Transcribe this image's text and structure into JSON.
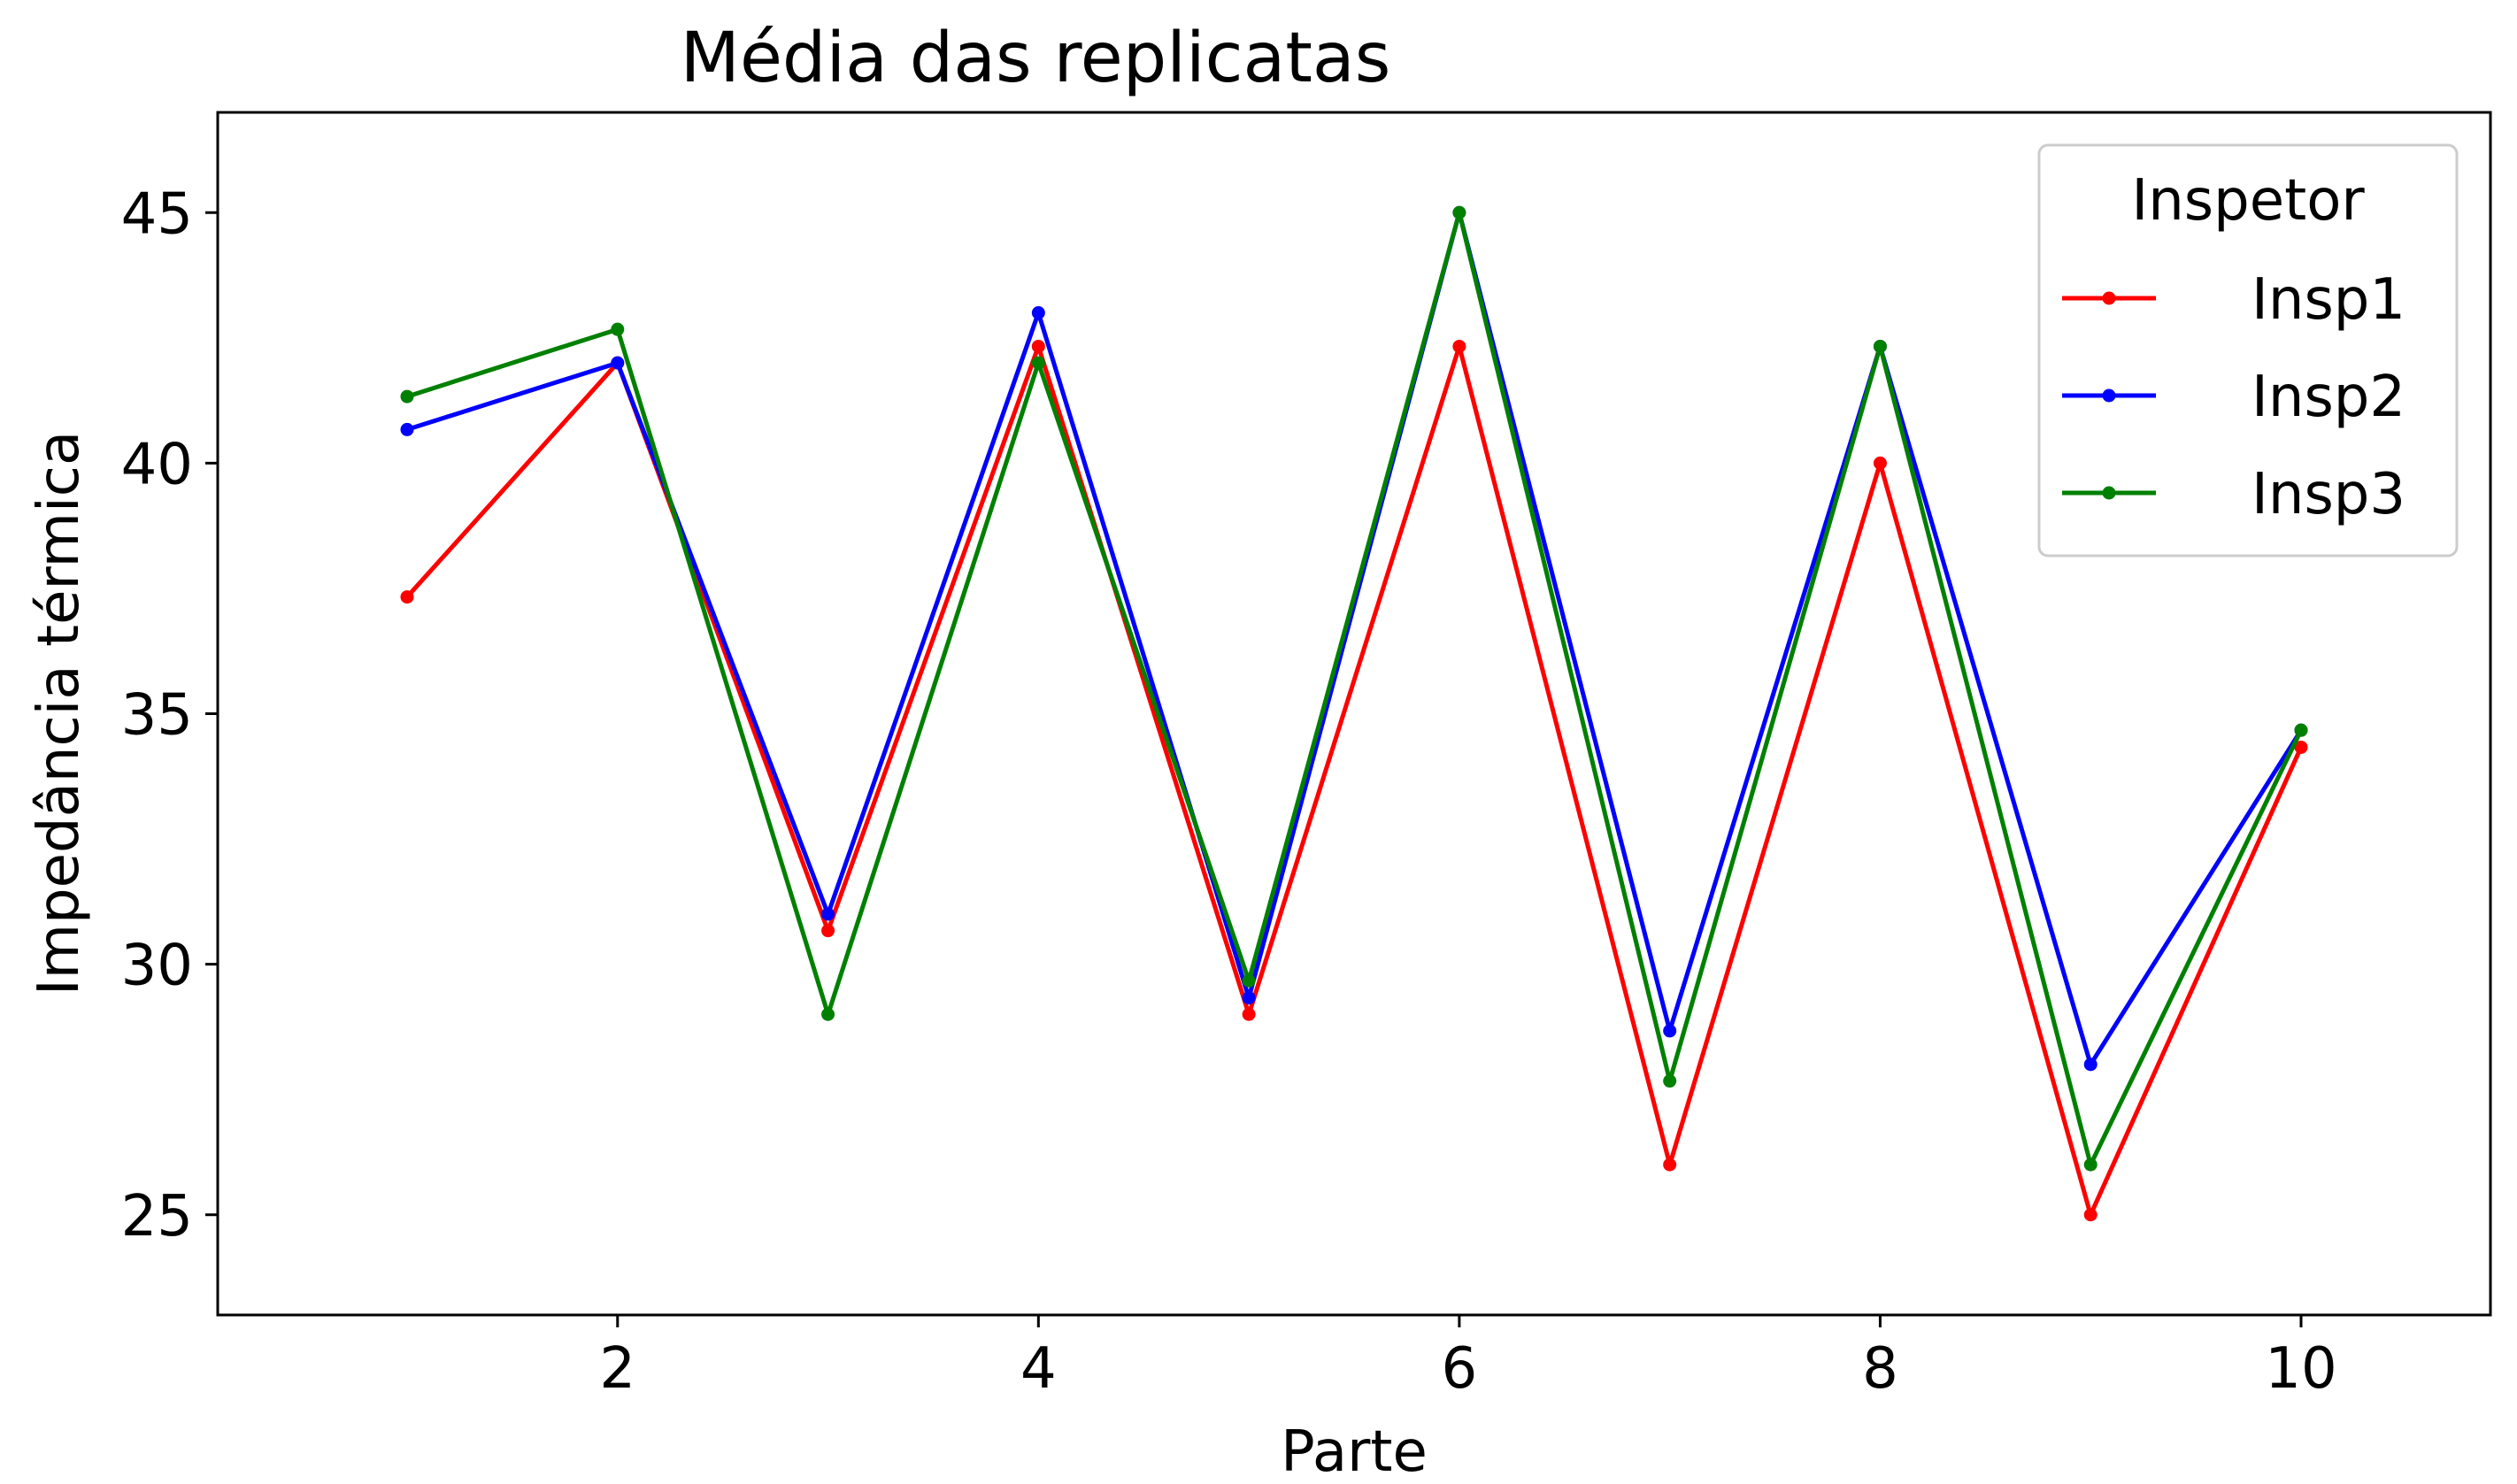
{
  "chart_data": {
    "type": "line",
    "title": "Média das replicatas",
    "xlabel": "Parte",
    "ylabel": "Impedância térmica",
    "x": [
      1,
      2,
      3,
      4,
      5,
      6,
      7,
      8,
      9,
      10
    ],
    "xlim": [
      0.1,
      10.9
    ],
    "ylim": [
      23,
      47
    ],
    "xticks": [
      2,
      4,
      6,
      8,
      10
    ],
    "yticks": [
      25,
      30,
      35,
      40,
      45
    ],
    "grid": false,
    "legend": {
      "title": "Inspetor",
      "placement": "top-right"
    },
    "series": [
      {
        "name": "Insp1",
        "color": "#ff0000",
        "values": [
          37.33,
          42.0,
          30.67,
          42.33,
          29.0,
          42.33,
          26.0,
          40.0,
          25.0,
          34.33
        ]
      },
      {
        "name": "Insp2",
        "color": "#0000ff",
        "values": [
          40.67,
          42.0,
          31.0,
          43.0,
          29.33,
          45.0,
          28.67,
          42.33,
          28.0,
          34.67
        ]
      },
      {
        "name": "Insp3",
        "color": "#008000",
        "values": [
          41.33,
          42.67,
          29.0,
          42.0,
          29.67,
          45.0,
          27.67,
          42.33,
          26.0,
          34.67
        ]
      }
    ]
  }
}
